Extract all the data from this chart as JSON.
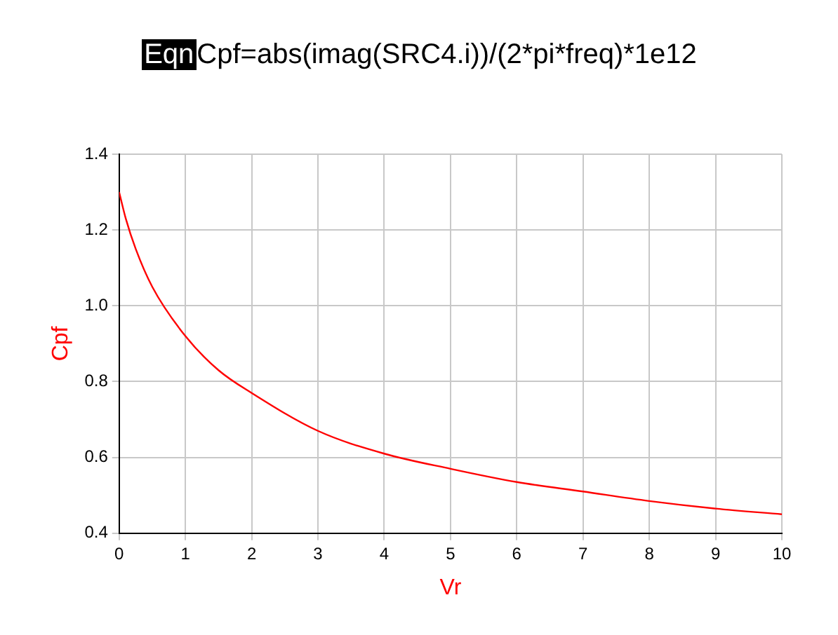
{
  "chart_data": {
    "type": "line",
    "title": "Cpf=abs(imag(SRC4.i))/(2*pi*freq)*1e12",
    "annotations": [
      "Eqn"
    ],
    "xlabel": "Vr",
    "ylabel": "Cpf",
    "x": [
      0,
      0.1,
      0.25,
      0.5,
      1,
      1.5,
      2,
      3,
      4,
      5,
      6,
      7,
      8,
      9,
      10
    ],
    "series": [
      {
        "color": "#ff0000",
        "values": [
          1.3,
          1.23,
          1.15,
          1.05,
          0.92,
          0.83,
          0.77,
          0.67,
          0.61,
          0.57,
          0.535,
          0.51,
          0.485,
          0.465,
          0.45
        ]
      }
    ],
    "xlim": [
      0,
      10
    ],
    "xticks": [
      0,
      1,
      2,
      3,
      4,
      5,
      6,
      7,
      8,
      9,
      10
    ],
    "ylim": [
      0.4,
      1.4
    ],
    "yticks": [
      0.4,
      0.6,
      0.8,
      {
        "value": 1.0,
        "label": "1.0"
      },
      1.2,
      1.4
    ],
    "grid": true,
    "legend": false,
    "marker": "none",
    "line_style": "solid"
  }
}
